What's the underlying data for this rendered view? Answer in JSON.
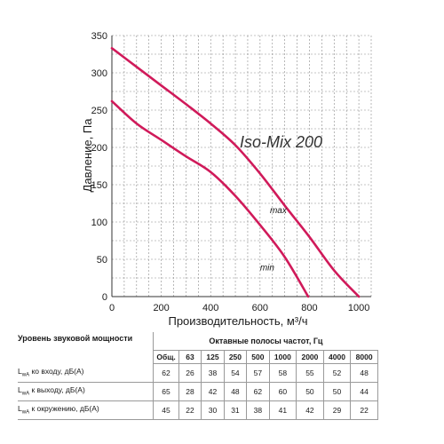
{
  "chart_data": {
    "type": "line",
    "title": "Iso-Mix 200",
    "xlabel": "Производительность, м³/ч",
    "ylabel": "Давление, Па",
    "xlim": [
      0,
      1050
    ],
    "ylim": [
      0,
      350
    ],
    "x_ticks": [
      "0",
      "200",
      "400",
      "600",
      "800",
      "1000"
    ],
    "y_ticks": [
      "0",
      "50",
      "100",
      "150",
      "200",
      "250",
      "300",
      "350"
    ],
    "grid": true,
    "colors": {
      "curve": "#d01a5a",
      "grid": "#8a8a8a",
      "axis": "#333333"
    },
    "series": [
      {
        "name": "max",
        "points": [
          [
            0,
            333
          ],
          [
            100,
            308
          ],
          [
            200,
            283
          ],
          [
            300,
            258
          ],
          [
            400,
            232
          ],
          [
            500,
            203
          ],
          [
            600,
            165
          ],
          [
            700,
            122
          ],
          [
            800,
            80
          ],
          [
            900,
            35
          ],
          [
            1000,
            0
          ]
        ]
      },
      {
        "name": "min",
        "points": [
          [
            0,
            262
          ],
          [
            100,
            232
          ],
          [
            200,
            210
          ],
          [
            300,
            188
          ],
          [
            400,
            167
          ],
          [
            500,
            135
          ],
          [
            600,
            96
          ],
          [
            700,
            53
          ],
          [
            795,
            0
          ]
        ]
      }
    ]
  },
  "table": {
    "left_header": "Уровень звуковой мощности",
    "group_header": "Октавные полосы частот, Гц",
    "columns": [
      "Общ.",
      "63",
      "125",
      "250",
      "500",
      "1000",
      "2000",
      "4000",
      "8000"
    ],
    "rows": [
      {
        "label_pre": "L",
        "label_sub": "wA",
        "label_post": " ко входу, дБ(А)",
        "values": [
          "62",
          "26",
          "38",
          "54",
          "57",
          "58",
          "55",
          "52",
          "48"
        ]
      },
      {
        "label_pre": "L",
        "label_sub": "wA",
        "label_post": " к выходу, дБ(А)",
        "values": [
          "65",
          "28",
          "42",
          "48",
          "62",
          "60",
          "50",
          "50",
          "44"
        ]
      },
      {
        "label_pre": "L",
        "label_sub": "wA",
        "label_post": " к окружению, дБ(А)",
        "values": [
          "45",
          "22",
          "30",
          "31",
          "38",
          "41",
          "42",
          "29",
          "22"
        ]
      }
    ]
  }
}
